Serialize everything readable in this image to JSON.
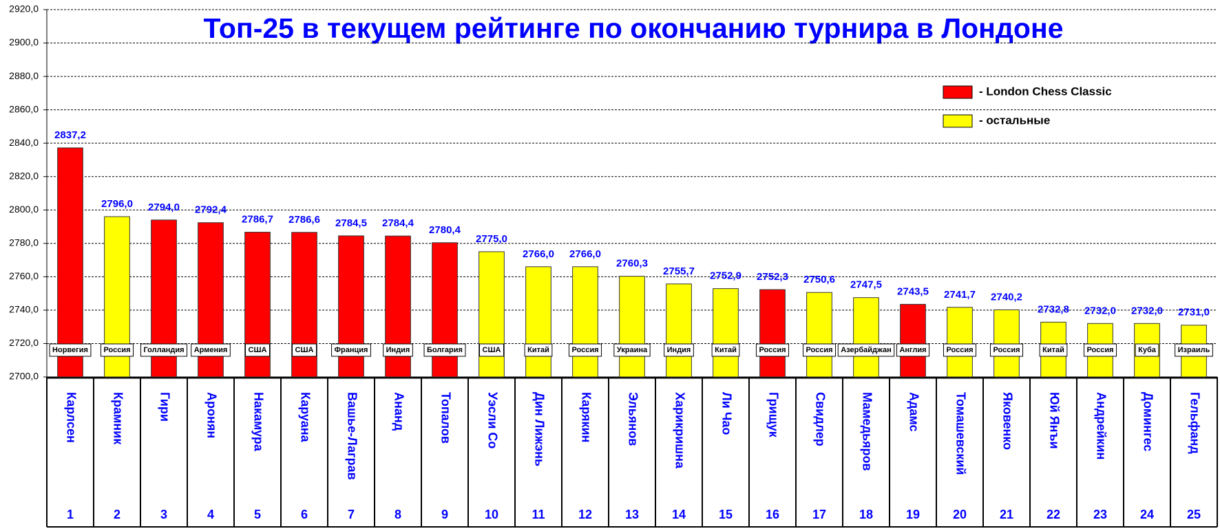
{
  "chart_data": {
    "type": "bar",
    "title": "Топ-25 в текущем рейтинге по окончанию турнира в Лондоне",
    "categories": [
      "Карлсен",
      "Крамник",
      "Гири",
      "Аронян",
      "Накамура",
      "Каруана",
      "Вашье-Лаграв",
      "Ананд",
      "Топалов",
      "Уэсли Со",
      "Дин Лижэнь",
      "Карякин",
      "Эльянов",
      "Харикришна",
      "Ли Чао",
      "Грищук",
      "Свидлер",
      "Мамедьяров",
      "Адамс",
      "Томашевский",
      "Яковенко",
      "Юй Янъи",
      "Андрейкин",
      "Домингес",
      "Гельфанд"
    ],
    "countries": [
      "Норвегия",
      "Россия",
      "Голландия",
      "Армения",
      "США",
      "США",
      "Франция",
      "Индия",
      "Болгария",
      "США",
      "Китай",
      "Россия",
      "Украина",
      "Индия",
      "Китай",
      "Россия",
      "Россия",
      "Азербайджан",
      "Англия",
      "Россия",
      "Россия",
      "Китай",
      "Россия",
      "Куба",
      "Израиль"
    ],
    "ranks": [
      1,
      2,
      3,
      4,
      5,
      6,
      7,
      8,
      9,
      10,
      11,
      12,
      13,
      14,
      15,
      16,
      17,
      18,
      19,
      20,
      21,
      22,
      23,
      24,
      25
    ],
    "series": [
      {
        "name": "- London Chess Classic",
        "color": "#ff0000",
        "values": [
          2837.2,
          null,
          2794.0,
          2792.4,
          2786.7,
          2786.6,
          2784.5,
          2784.4,
          2780.4,
          null,
          null,
          null,
          null,
          null,
          null,
          2752.3,
          null,
          null,
          2743.5,
          null,
          null,
          null,
          null,
          null,
          null
        ],
        "value_labels": [
          "2837,2",
          null,
          "2794,0",
          "2792,4",
          "2786,7",
          "2786,6",
          "2784,5",
          "2784,4",
          "2780,4",
          null,
          null,
          null,
          null,
          null,
          null,
          "2752,3",
          null,
          null,
          "2743,5",
          null,
          null,
          null,
          null,
          null,
          null
        ]
      },
      {
        "name": "- остальные",
        "color": "#ffff00",
        "values": [
          null,
          2796.0,
          null,
          null,
          null,
          null,
          null,
          null,
          null,
          2775.0,
          2766.0,
          2766.0,
          2760.3,
          2755.7,
          2752.9,
          null,
          2750.6,
          2747.5,
          null,
          2741.7,
          2740.2,
          2732.8,
          2732.0,
          2732.0,
          2731.0
        ],
        "value_labels": [
          null,
          "2796,0",
          null,
          null,
          null,
          null,
          null,
          null,
          null,
          "2775,0",
          "2766,0",
          "2766,0",
          "2760,3",
          "2755,7",
          "2752,9",
          null,
          "2750,6",
          "2747,5",
          null,
          "2741,7",
          "2740,2",
          "2732,8",
          "2732,0",
          "2732,0",
          "2731,0"
        ]
      }
    ],
    "ylim": [
      2700,
      2920
    ],
    "yticks": [
      {
        "value": 2700,
        "label": "2700,0"
      },
      {
        "value": 2720,
        "label": "2720,0"
      },
      {
        "value": 2740,
        "label": "2740,0"
      },
      {
        "value": 2760,
        "label": "2760,0"
      },
      {
        "value": 2780,
        "label": "2780,0"
      },
      {
        "value": 2800,
        "label": "2800,0"
      },
      {
        "value": 2820,
        "label": "2820,0"
      },
      {
        "value": 2840,
        "label": "2840,0"
      },
      {
        "value": 2860,
        "label": "2860,0"
      },
      {
        "value": 2880,
        "label": "2880,0"
      },
      {
        "value": 2900,
        "label": "2900,0"
      },
      {
        "value": 2920,
        "label": "2920,0"
      }
    ],
    "grid": true
  }
}
